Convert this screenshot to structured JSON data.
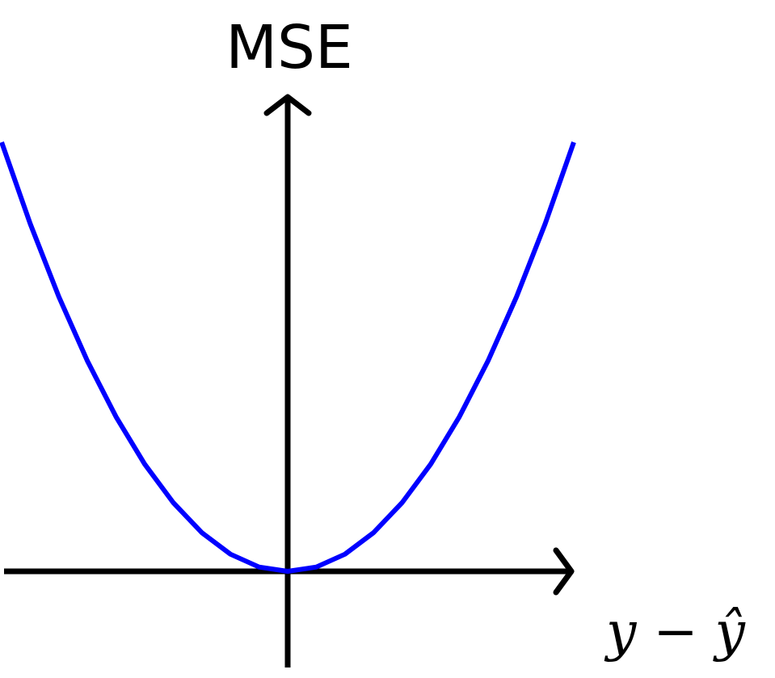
{
  "chart_data": {
    "type": "line",
    "ylabel": "MSE",
    "xlabel": "y − ŷ",
    "xlim": [
      -1.0,
      1.0
    ],
    "ylim": [
      0,
      1.0
    ],
    "grid": false,
    "series": [
      {
        "color": "#0000ff",
        "x": [
          -1.0,
          -0.9,
          -0.8,
          -0.7,
          -0.6,
          -0.5,
          -0.4,
          -0.3,
          -0.2,
          -0.1,
          0.0,
          0.1,
          0.2,
          0.3,
          0.4,
          0.5,
          0.6,
          0.7,
          0.8,
          0.9,
          1.0
        ],
        "y": [
          1.0,
          0.81,
          0.64,
          0.49,
          0.36,
          0.25,
          0.16,
          0.09,
          0.04,
          0.01,
          0.0,
          0.01,
          0.04,
          0.09,
          0.16,
          0.25,
          0.36,
          0.49,
          0.64,
          0.81,
          1.0
        ]
      }
    ],
    "axis_color": "#000000"
  }
}
